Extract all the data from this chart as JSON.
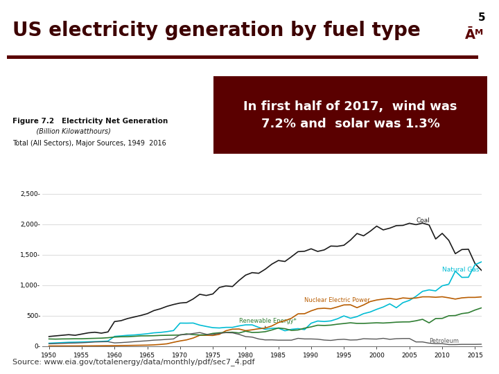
{
  "title": "US electricity generation by fuel type",
  "slide_number": "5",
  "annotation_text": "In first half of 2017,  wind was\n7.2% and  solar was 1.3%",
  "source_text": "Source: www.eia.gov/totalenergy/data/monthly/pdf/sec7_4.pdf",
  "fig_label_bold": "Figure 7.2   Electricity Net Generation",
  "fig_label_italic": "           (Billion Kilowatthours)",
  "fig_subtitle": "Total (All Sectors), Major Sources, 1949  2016",
  "background_color": "#ffffff",
  "title_color": "#3d0000",
  "maroon_bar_color": "#5a0000",
  "annotation_bg": "#5a0000",
  "annotation_text_color": "#ffffff",
  "slide_number_color": "#000000",
  "ylabel_ticks": [
    "0-",
    "500-",
    "1,000-",
    "1,500-",
    "2,000-",
    "2,500-"
  ],
  "ytick_vals": [
    0,
    500,
    1000,
    1500,
    2000,
    2500
  ],
  "xtick_vals": [
    1950,
    1955,
    1960,
    1965,
    1970,
    1975,
    1980,
    1985,
    1990,
    1995,
    2000,
    2005,
    2010,
    2015
  ],
  "coal_color": "#1a1a1a",
  "natural_gas_color": "#00bcd4",
  "nuclear_color": "#b85c00",
  "renewable_color": "#2e7d32",
  "petroleum_color": "#555555",
  "tamu_logo_color": "#5a0000",
  "chart_years": [
    1950,
    1951,
    1952,
    1953,
    1954,
    1955,
    1956,
    1957,
    1958,
    1959,
    1960,
    1961,
    1962,
    1963,
    1964,
    1965,
    1966,
    1967,
    1968,
    1969,
    1970,
    1971,
    1972,
    1973,
    1974,
    1975,
    1976,
    1977,
    1978,
    1979,
    1980,
    1981,
    1982,
    1983,
    1984,
    1985,
    1986,
    1987,
    1988,
    1989,
    1990,
    1991,
    1992,
    1993,
    1994,
    1995,
    1996,
    1997,
    1998,
    1999,
    2000,
    2001,
    2002,
    2003,
    2004,
    2005,
    2006,
    2007,
    2008,
    2009,
    2010,
    2011,
    2012,
    2013,
    2014,
    2015,
    2016
  ],
  "coal_vals": [
    155,
    165,
    175,
    185,
    175,
    195,
    215,
    225,
    210,
    230,
    400,
    415,
    450,
    475,
    500,
    530,
    580,
    610,
    650,
    680,
    704,
    713,
    771,
    848,
    828,
    853,
    960,
    985,
    975,
    1075,
    1162,
    1203,
    1192,
    1259,
    1342,
    1402,
    1386,
    1464,
    1547,
    1554,
    1594,
    1551,
    1576,
    1639,
    1635,
    1652,
    1737,
    1845,
    1807,
    1881,
    1966,
    1904,
    1933,
    1974,
    1978,
    2013,
    1990,
    2016,
    1985,
    1755,
    1847,
    1733,
    1514,
    1582,
    1587,
    1352,
    1240
  ],
  "nat_gas_vals": [
    45,
    50,
    55,
    60,
    62,
    65,
    68,
    72,
    75,
    80,
    157,
    165,
    175,
    180,
    190,
    200,
    215,
    222,
    235,
    252,
    375,
    374,
    376,
    342,
    320,
    300,
    295,
    305,
    305,
    329,
    346,
    346,
    305,
    273,
    290,
    292,
    249,
    273,
    284,
    268,
    373,
    409,
    401,
    411,
    445,
    493,
    455,
    481,
    530,
    557,
    601,
    639,
    691,
    627,
    710,
    748,
    814,
    896,
    920,
    903,
    987,
    1013,
    1227,
    1125,
    1127,
    1333,
    1380
  ],
  "nuclear_vals": [
    0,
    0,
    0,
    0,
    0,
    1,
    1,
    2,
    3,
    4,
    5,
    7,
    8,
    10,
    12,
    14,
    18,
    25,
    35,
    60,
    82,
    100,
    130,
    175,
    175,
    172,
    191,
    250,
    275,
    278,
    251,
    265,
    282,
    293,
    328,
    384,
    414,
    455,
    527,
    529,
    576,
    612,
    619,
    610,
    640,
    673,
    675,
    628,
    673,
    728,
    754,
    769,
    780,
    764,
    788,
    780,
    787,
    806,
    806,
    799,
    807,
    790,
    769,
    789,
    797,
    797,
    805
  ],
  "renewable_vals": [
    115,
    112,
    115,
    116,
    118,
    118,
    122,
    125,
    128,
    135,
    146,
    151,
    152,
    158,
    165,
    166,
    168,
    173,
    175,
    177,
    179,
    198,
    186,
    180,
    184,
    206,
    216,
    222,
    225,
    213,
    242,
    221,
    224,
    234,
    262,
    295,
    283,
    255,
    262,
    292,
    313,
    340,
    336,
    342,
    357,
    368,
    380,
    370,
    370,
    375,
    380,
    376,
    382,
    390,
    394,
    395,
    413,
    437,
    379,
    450,
    452,
    495,
    499,
    531,
    545,
    589,
    625
  ],
  "petroleum_vals": [
    35,
    38,
    42,
    46,
    48,
    52,
    58,
    65,
    68,
    70,
    50,
    55,
    62,
    70,
    78,
    85,
    95,
    100,
    108,
    115,
    185,
    188,
    205,
    220,
    192,
    188,
    207,
    218,
    215,
    190,
    154,
    145,
    115,
    99,
    100,
    95,
    95,
    95,
    125,
    115,
    115,
    111,
    97,
    91,
    104,
    110,
    97,
    100,
    119,
    115,
    113,
    125,
    109,
    119,
    122,
    122,
    66,
    66,
    46,
    37,
    37,
    23,
    23,
    26,
    26,
    26,
    28
  ]
}
